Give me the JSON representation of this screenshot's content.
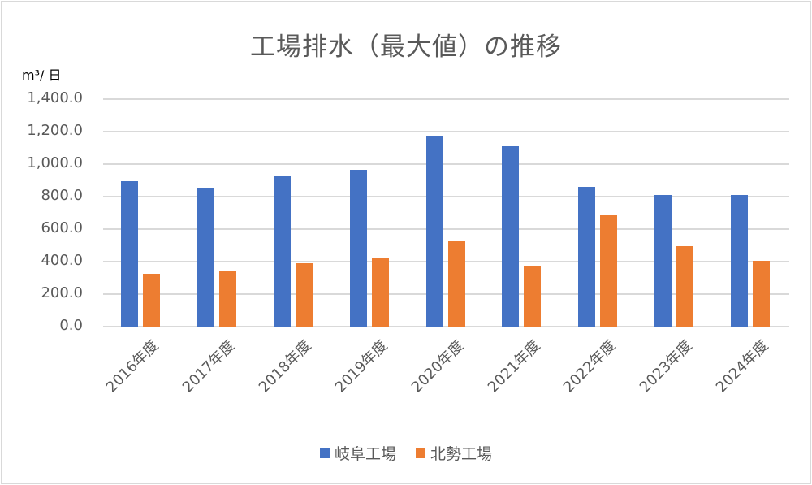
{
  "chart_data": {
    "type": "bar",
    "title": "工場排水（最大値）の推移",
    "ylabel": "m³/ 日",
    "xlabel": "",
    "ylim": [
      0,
      1400
    ],
    "yticks": [
      "0.0",
      "200.0",
      "400.0",
      "600.0",
      "800.0",
      "1,000.0",
      "1,200.0",
      "1,400.0"
    ],
    "grid": true,
    "legend_position": "bottom",
    "categories": [
      "2016年度",
      "2017年度",
      "2018年度",
      "2019年度",
      "2020年度",
      "2021年度",
      "2022年度",
      "2023年度",
      "2024年度"
    ],
    "series": [
      {
        "name": "岐阜工場",
        "color": "#4472C4",
        "values": [
          895,
          855,
          925,
          967,
          1175,
          1108,
          860,
          812,
          812
        ]
      },
      {
        "name": "北勢工場",
        "color": "#ED7D31",
        "values": [
          325,
          345,
          390,
          418,
          525,
          373,
          683,
          495,
          405
        ]
      }
    ]
  }
}
